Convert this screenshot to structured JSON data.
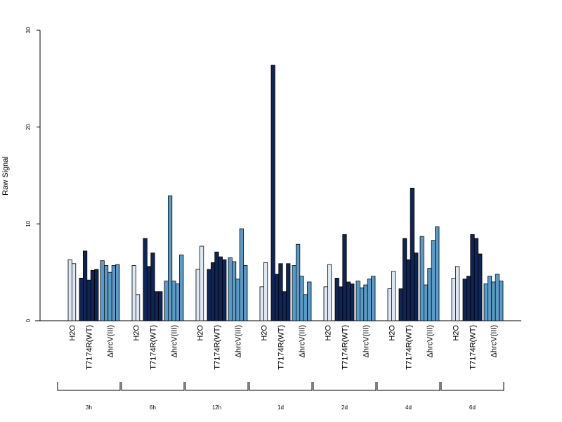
{
  "chart_data": {
    "type": "bar",
    "ylabel": "Raw Signal",
    "xlabel": "",
    "title": "",
    "ylim": [
      0,
      30
    ],
    "yticks": [
      0,
      10,
      20,
      30
    ],
    "grid": false,
    "group_labels": [
      "H2O",
      "T7174R(WT)",
      "ΔhrcV(III)"
    ],
    "colors": {
      "H2O": "#dde8f4",
      "T7174R(WT)": "#0f2557",
      "ΔhrcV(III)": "#5b9bc8"
    },
    "timepoints": [
      {
        "label": "3h",
        "H2O": [
          6.3,
          5.9
        ],
        "T7174R(WT)": [
          4.4,
          7.2,
          4.2,
          5.2,
          5.3
        ],
        "ΔhrcV(III)": [
          6.2,
          5.7,
          5.0,
          5.7,
          5.8
        ]
      },
      {
        "label": "6h",
        "H2O": [
          5.7,
          2.7
        ],
        "T7174R(WT)": [
          8.5,
          5.6,
          7.0,
          3.0,
          3.0
        ],
        "ΔhrcV(III)": [
          4.1,
          12.9,
          4.1,
          3.8,
          6.8
        ]
      },
      {
        "label": "12h",
        "H2O": [
          5.3,
          7.7
        ],
        "T7174R(WT)": [
          5.3,
          6.0,
          7.1,
          6.6,
          6.3
        ],
        "ΔhrcV(III)": [
          6.5,
          6.1,
          4.3,
          9.5,
          5.7
        ]
      },
      {
        "label": "1d",
        "H2O": [
          3.5,
          6.0
        ],
        "T7174R(WT)": [
          26.4,
          4.8,
          5.9,
          3.0,
          5.9
        ],
        "ΔhrcV(III)": [
          5.7,
          7.9,
          4.6,
          2.7,
          4.0
        ]
      },
      {
        "label": "2d",
        "H2O": [
          3.5,
          5.8
        ],
        "T7174R(WT)": [
          4.4,
          3.5,
          8.9,
          4.0,
          3.8
        ],
        "ΔhrcV(III)": [
          4.1,
          3.4,
          3.7,
          4.3,
          4.6
        ]
      },
      {
        "label": "4d",
        "H2O": [
          3.3,
          5.1
        ],
        "T7174R(WT)": [
          3.3,
          8.5,
          6.3,
          13.7,
          7.0
        ],
        "ΔhrcV(III)": [
          8.7,
          3.7,
          5.4,
          8.3,
          9.7
        ]
      },
      {
        "label": "6d",
        "H2O": [
          4.4,
          5.6
        ],
        "T7174R(WT)": [
          4.3,
          4.6,
          8.9,
          8.5,
          6.9
        ],
        "ΔhrcV(III)": [
          3.8,
          4.6,
          4.0,
          4.8,
          4.1
        ]
      }
    ]
  }
}
